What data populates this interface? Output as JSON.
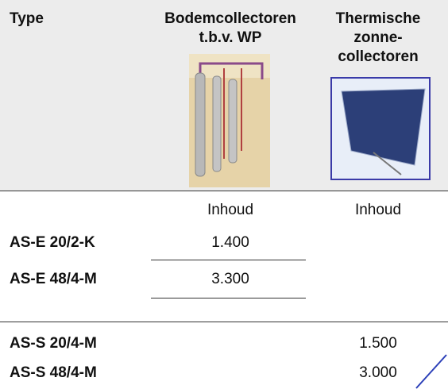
{
  "header": {
    "columns": [
      {
        "lines": [
          "Type"
        ]
      },
      {
        "lines": [
          "Bodemcollectoren",
          "t.b.v. WP"
        ]
      },
      {
        "lines": [
          "Thermische",
          "zonne-",
          "collectoren"
        ]
      }
    ]
  },
  "subheader": {
    "bodem": "Inhoud",
    "thermisch": "Inhoud"
  },
  "table": {
    "rows": [
      {
        "type": "AS-E 20/2-K",
        "bodem": "1.400"
      },
      {
        "type": "AS-E 48/4-M",
        "bodem": "3.300"
      },
      {
        "type": "AS-S 20/4-M",
        "thermisch": "1.500"
      },
      {
        "type": "AS-S 48/4-M",
        "thermisch": "3.000"
      }
    ]
  }
}
